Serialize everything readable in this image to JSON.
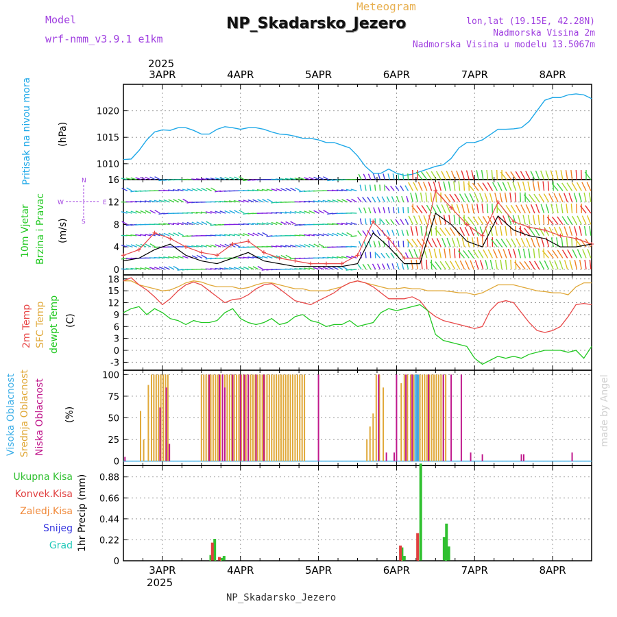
{
  "header": {
    "model_label": "Model",
    "model_name": "wrf-nmm_v3.9.1 e1km",
    "main_title": "NP_Skadarsko_Jezero",
    "subtitle": "Meteogram",
    "lonlat": "lon,lat (19.15E, 42.28N)",
    "elevation": "Nadmorska Visina 2m",
    "model_elevation": "Nadmorska Visina u modelu 13.5067m",
    "year": "2025",
    "footer_station": "NP_Skadarsko_Jezero",
    "watermark": "made by Angel"
  },
  "colors": {
    "pressure": "#1ea8e8",
    "temp2m": "#e84848",
    "sfc_temp": "#e0a838",
    "dewpoint": "#20c820",
    "wind_speed": "#000000",
    "wind_gust": "#e84848",
    "cloud_high": "#40b0e8",
    "cloud_mid": "#e0a838",
    "cloud_low": "#c0188c",
    "precip_total": "#30c030",
    "precip_conv": "#e04040",
    "precip_ice": "#f08838",
    "precip_snow": "#3838e0",
    "precip_hail": "#20c8b8"
  },
  "chart_data": [
    {
      "type": "line",
      "panel": "pressure",
      "ylabel_main": "Pritisak na nivou mora",
      "ylabel_unit": "(hPa)",
      "x_ticks": [
        "3APR",
        "4APR",
        "5APR",
        "6APR",
        "7APR",
        "8APR"
      ],
      "ylim": [
        1007,
        1025
      ],
      "yticks": [
        1010,
        1015,
        1020
      ],
      "grid": true,
      "x": [
        2.5,
        2.6,
        2.7,
        2.8,
        2.9,
        3.0,
        3.1,
        3.2,
        3.3,
        3.4,
        3.5,
        3.6,
        3.7,
        3.8,
        3.9,
        4.0,
        4.1,
        4.2,
        4.3,
        4.4,
        4.5,
        4.6,
        4.7,
        4.8,
        4.9,
        5.0,
        5.1,
        5.2,
        5.3,
        5.4,
        5.5,
        5.6,
        5.7,
        5.8,
        5.9,
        6.0,
        6.1,
        6.2,
        6.3,
        6.4,
        6.5,
        6.6,
        6.7,
        6.8,
        6.9,
        7.0,
        7.1,
        7.2,
        7.3,
        7.4,
        7.5,
        7.6,
        7.7,
        7.8,
        7.9,
        8.0,
        8.1,
        8.2,
        8.3,
        8.4,
        8.5
      ],
      "values": [
        1010.8,
        1010.9,
        1012.5,
        1014.5,
        1016.0,
        1016.4,
        1016.3,
        1016.8,
        1016.8,
        1016.3,
        1015.6,
        1015.6,
        1016.5,
        1017.0,
        1016.8,
        1016.5,
        1016.8,
        1016.8,
        1016.5,
        1016.0,
        1015.6,
        1015.5,
        1015.2,
        1014.8,
        1014.8,
        1014.5,
        1014.0,
        1014.0,
        1013.5,
        1013.0,
        1011.5,
        1009.5,
        1008.2,
        1008.2,
        1009.0,
        1008.2,
        1007.8,
        1008.0,
        1008.5,
        1009.0,
        1009.5,
        1009.8,
        1011.0,
        1013.0,
        1014.0,
        1014.0,
        1014.5,
        1015.5,
        1016.5,
        1016.5,
        1016.6,
        1016.8,
        1018.0,
        1020.0,
        1022.0,
        1022.5,
        1022.5,
        1023.0,
        1023.2,
        1023.0,
        1022.3
      ]
    },
    {
      "type": "line",
      "panel": "wind",
      "ylabel_main": "10m Vjetar",
      "ylabel_sub": "Brzina i Pravac",
      "ylabel_unit": "(m/s)",
      "compass_labels": [
        "N",
        "W",
        "E",
        "S"
      ],
      "ylim": [
        -1,
        16
      ],
      "yticks": [
        0,
        4,
        8,
        12,
        16
      ],
      "grid": true,
      "series": [
        {
          "x": [
            2.5,
            2.7,
            2.9,
            3.1,
            3.3,
            3.5,
            3.7,
            3.9,
            4.1,
            4.3,
            4.5,
            4.7,
            4.9,
            5.1,
            5.3,
            5.5,
            5.7,
            5.9,
            6.1,
            6.3,
            6.5,
            6.7,
            6.9,
            7.1,
            7.3,
            7.5,
            7.7,
            7.9,
            8.1,
            8.3,
            8.5
          ],
          "values": [
            1.5,
            2.0,
            3.5,
            4.5,
            2.5,
            1.5,
            1.0,
            2.0,
            3.0,
            1.5,
            1.0,
            0.5,
            0.5,
            0.5,
            0.5,
            1.0,
            6.5,
            4.0,
            1.0,
            1.0,
            10.0,
            8.0,
            5.0,
            4.0,
            9.5,
            7.0,
            6.0,
            5.5,
            4.0,
            4.0,
            4.5
          ]
        },
        {
          "x": [
            2.5,
            2.7,
            2.9,
            3.1,
            3.3,
            3.5,
            3.7,
            3.9,
            4.1,
            4.3,
            4.5,
            4.7,
            4.9,
            5.1,
            5.3,
            5.5,
            5.7,
            5.9,
            6.1,
            6.3,
            6.5,
            6.7,
            6.9,
            7.1,
            7.3,
            7.5,
            7.7,
            7.9,
            8.1,
            8.3,
            8.5
          ],
          "values": [
            2.5,
            3.5,
            6.5,
            5.5,
            4.0,
            3.0,
            2.5,
            4.5,
            5.0,
            3.0,
            2.0,
            1.5,
            1.0,
            1.0,
            1.0,
            2.5,
            8.5,
            5.5,
            2.0,
            2.0,
            14.0,
            11.0,
            8.0,
            6.0,
            12.0,
            8.5,
            7.5,
            7.0,
            6.0,
            5.5,
            4.5
          ]
        }
      ]
    },
    {
      "type": "line",
      "panel": "temperature",
      "ylabel_lines": [
        "2m Temp",
        "SFC Temp",
        "dewpt Temp"
      ],
      "ylabel_unit": "(C)",
      "ylim": [
        -5,
        19
      ],
      "yticks": [
        -3,
        0,
        3,
        6,
        9,
        12,
        15,
        18
      ],
      "grid": true,
      "x": [
        2.5,
        2.6,
        2.7,
        2.8,
        2.9,
        3.0,
        3.1,
        3.2,
        3.3,
        3.4,
        3.5,
        3.6,
        3.7,
        3.8,
        3.9,
        4.0,
        4.1,
        4.2,
        4.3,
        4.4,
        4.5,
        4.6,
        4.7,
        4.8,
        4.9,
        5.0,
        5.1,
        5.2,
        5.3,
        5.4,
        5.5,
        5.6,
        5.7,
        5.8,
        5.9,
        6.0,
        6.1,
        6.2,
        6.3,
        6.4,
        6.5,
        6.6,
        6.7,
        6.8,
        6.9,
        7.0,
        7.1,
        7.2,
        7.3,
        7.4,
        7.5,
        7.6,
        7.7,
        7.8,
        7.9,
        8.0,
        8.1,
        8.2,
        8.3,
        8.4,
        8.5
      ],
      "series": [
        {
          "name": "2m Temp",
          "values": [
            17.5,
            18.3,
            16.5,
            15.2,
            13.5,
            11.5,
            13.0,
            15.0,
            16.5,
            17.2,
            16.5,
            15.0,
            13.5,
            12.0,
            12.8,
            13.0,
            14.0,
            15.5,
            16.5,
            16.8,
            15.5,
            14.0,
            12.5,
            12.0,
            11.5,
            12.5,
            13.5,
            14.5,
            16.0,
            17.0,
            17.5,
            17.0,
            16.0,
            14.5,
            13.0,
            13.0,
            13.0,
            13.5,
            12.5,
            10.0,
            8.5,
            7.5,
            7.0,
            6.5,
            6.0,
            5.5,
            6.0,
            10.0,
            12.0,
            12.5,
            12.0,
            9.5,
            7.0,
            5.0,
            4.5,
            5.0,
            6.0,
            8.5,
            11.5,
            11.8,
            11.5
          ]
        },
        {
          "name": "SFC Temp",
          "values": [
            17.5,
            17.5,
            16.5,
            16.0,
            15.5,
            15.0,
            15.2,
            16.0,
            17.0,
            17.5,
            17.2,
            16.5,
            16.0,
            16.0,
            16.0,
            15.5,
            15.8,
            16.5,
            17.0,
            17.0,
            16.5,
            16.0,
            15.5,
            15.5,
            15.0,
            15.0,
            15.0,
            15.5,
            16.0,
            17.0,
            17.5,
            17.0,
            16.5,
            16.0,
            15.5,
            15.5,
            15.8,
            15.5,
            15.5,
            15.0,
            15.0,
            15.0,
            14.8,
            14.5,
            14.5,
            14.0,
            14.5,
            15.5,
            16.5,
            16.5,
            16.5,
            16.0,
            15.5,
            15.0,
            14.8,
            14.5,
            14.5,
            14.0,
            16.0,
            17.0,
            17.0
          ]
        },
        {
          "name": "dewpt Temp",
          "values": [
            9.5,
            10.5,
            11.0,
            9.0,
            10.5,
            9.5,
            8.0,
            7.5,
            6.5,
            7.5,
            7.0,
            7.0,
            7.5,
            9.5,
            10.5,
            8.0,
            7.0,
            6.5,
            7.0,
            8.0,
            6.5,
            7.0,
            8.5,
            9.0,
            7.5,
            7.0,
            6.0,
            6.5,
            6.5,
            7.5,
            6.0,
            6.5,
            7.0,
            9.5,
            10.5,
            10.0,
            10.5,
            11.0,
            11.5,
            10.0,
            4.0,
            2.5,
            2.0,
            1.5,
            1.0,
            -2.0,
            -3.5,
            -2.5,
            -1.5,
            -2.0,
            -1.5,
            -2.0,
            -1.0,
            -0.5,
            0.0,
            0.0,
            0.0,
            -0.5,
            0.0,
            -2.0,
            1.0
          ]
        }
      ]
    },
    {
      "type": "bar",
      "panel": "clouds",
      "ylabel_lines": [
        "Visoka Oblacnost",
        "Srednja Oblacnost",
        "Niska Oblacnost"
      ],
      "ylabel_unit": "(%)",
      "ylim": [
        -5,
        105
      ],
      "yticks": [
        0,
        25,
        50,
        75,
        100
      ],
      "grid": true,
      "series": [
        {
          "name": "Srednja Oblacnost",
          "x": [
            2.72,
            2.76,
            2.82,
            2.86,
            2.89,
            2.92,
            2.95,
            2.98,
            3.01,
            3.04,
            3.07,
            3.5,
            3.53,
            3.56,
            3.59,
            3.62,
            3.65,
            3.68,
            3.71,
            3.74,
            3.77,
            3.8,
            3.83,
            3.86,
            3.89,
            3.92,
            3.95,
            3.98,
            4.01,
            4.04,
            4.07,
            4.1,
            4.13,
            4.16,
            4.19,
            4.22,
            4.25,
            4.28,
            4.31,
            4.34,
            4.37,
            4.4,
            4.43,
            4.46,
            4.49,
            4.52,
            4.55,
            4.58,
            4.61,
            4.64,
            4.67,
            4.7,
            4.73,
            4.76,
            4.79,
            4.82,
            5.62,
            5.66,
            5.7,
            5.74,
            5.78,
            5.83,
            6.06,
            6.1,
            6.14,
            6.18,
            6.22,
            6.26,
            6.3,
            6.33,
            6.36,
            6.39,
            6.42,
            6.45,
            6.48,
            6.51,
            6.54,
            6.57,
            6.6,
            6.63
          ],
          "values": [
            58,
            25,
            88,
            100,
            100,
            100,
            100,
            100,
            100,
            100,
            100,
            100,
            100,
            100,
            100,
            100,
            100,
            100,
            100,
            100,
            100,
            100,
            100,
            100,
            100,
            100,
            100,
            100,
            100,
            100,
            100,
            100,
            100,
            100,
            100,
            100,
            100,
            100,
            100,
            100,
            100,
            100,
            100,
            100,
            100,
            100,
            100,
            100,
            100,
            100,
            100,
            100,
            100,
            100,
            100,
            100,
            25,
            40,
            55,
            100,
            100,
            85,
            90,
            100,
            100,
            100,
            100,
            100,
            100,
            100,
            100,
            100,
            100,
            100,
            100,
            100,
            100,
            100,
            100,
            100
          ]
        },
        {
          "name": "Niska Oblacnost",
          "x": [
            2.52,
            2.97,
            3.05,
            3.09,
            3.6,
            3.73,
            3.77,
            3.8,
            3.9,
            4.0,
            4.05,
            4.1,
            4.2,
            4.3,
            5.0,
            5.77,
            5.87,
            5.97,
            6.0,
            6.12,
            6.2,
            6.27,
            6.41,
            6.6,
            6.7,
            6.83,
            6.95,
            7.1,
            7.6,
            7.63,
            8.25
          ],
          "values": [
            5,
            62,
            85,
            20,
            100,
            100,
            100,
            85,
            100,
            100,
            100,
            100,
            100,
            100,
            100,
            100,
            10,
            10,
            100,
            100,
            100,
            100,
            100,
            100,
            100,
            100,
            10,
            8,
            8,
            8,
            10
          ]
        },
        {
          "name": "Visoka Oblacnost",
          "x": [
            6.24,
            6.26,
            6.28
          ],
          "values": [
            100,
            100,
            100
          ]
        }
      ]
    },
    {
      "type": "bar",
      "panel": "precipitation",
      "legend": [
        "Ukupna Kisa",
        "Konvek.Kisa",
        "Zaledj.Kisa",
        "Snijeg",
        "Grad"
      ],
      "ylabel": "1hr Precip (mm)",
      "ylim": [
        0,
        1.0
      ],
      "yticks": [
        0,
        0.22,
        0.44,
        0.66,
        0.88
      ],
      "ytick_labels": [
        "0",
        "0.22",
        "0.44",
        "0.66",
        "0.88"
      ],
      "grid": true,
      "x_ticks_bottom": [
        "3APR",
        "4APR",
        "5APR",
        "6APR",
        "7APR",
        "8APR"
      ],
      "series": [
        {
          "name": "Ukupna Kisa",
          "x": [
            3.62,
            3.67,
            3.76,
            3.79,
            6.07,
            6.1,
            6.31,
            6.61,
            6.64,
            6.67
          ],
          "values": [
            0.06,
            0.23,
            0.03,
            0.05,
            0.14,
            0.05,
            1.02,
            0.25,
            0.39,
            0.15
          ]
        },
        {
          "name": "Konvek.Kisa",
          "x": [
            3.64,
            3.73,
            6.05,
            6.27
          ],
          "values": [
            0.19,
            0.04,
            0.16,
            0.29
          ]
        }
      ]
    }
  ]
}
